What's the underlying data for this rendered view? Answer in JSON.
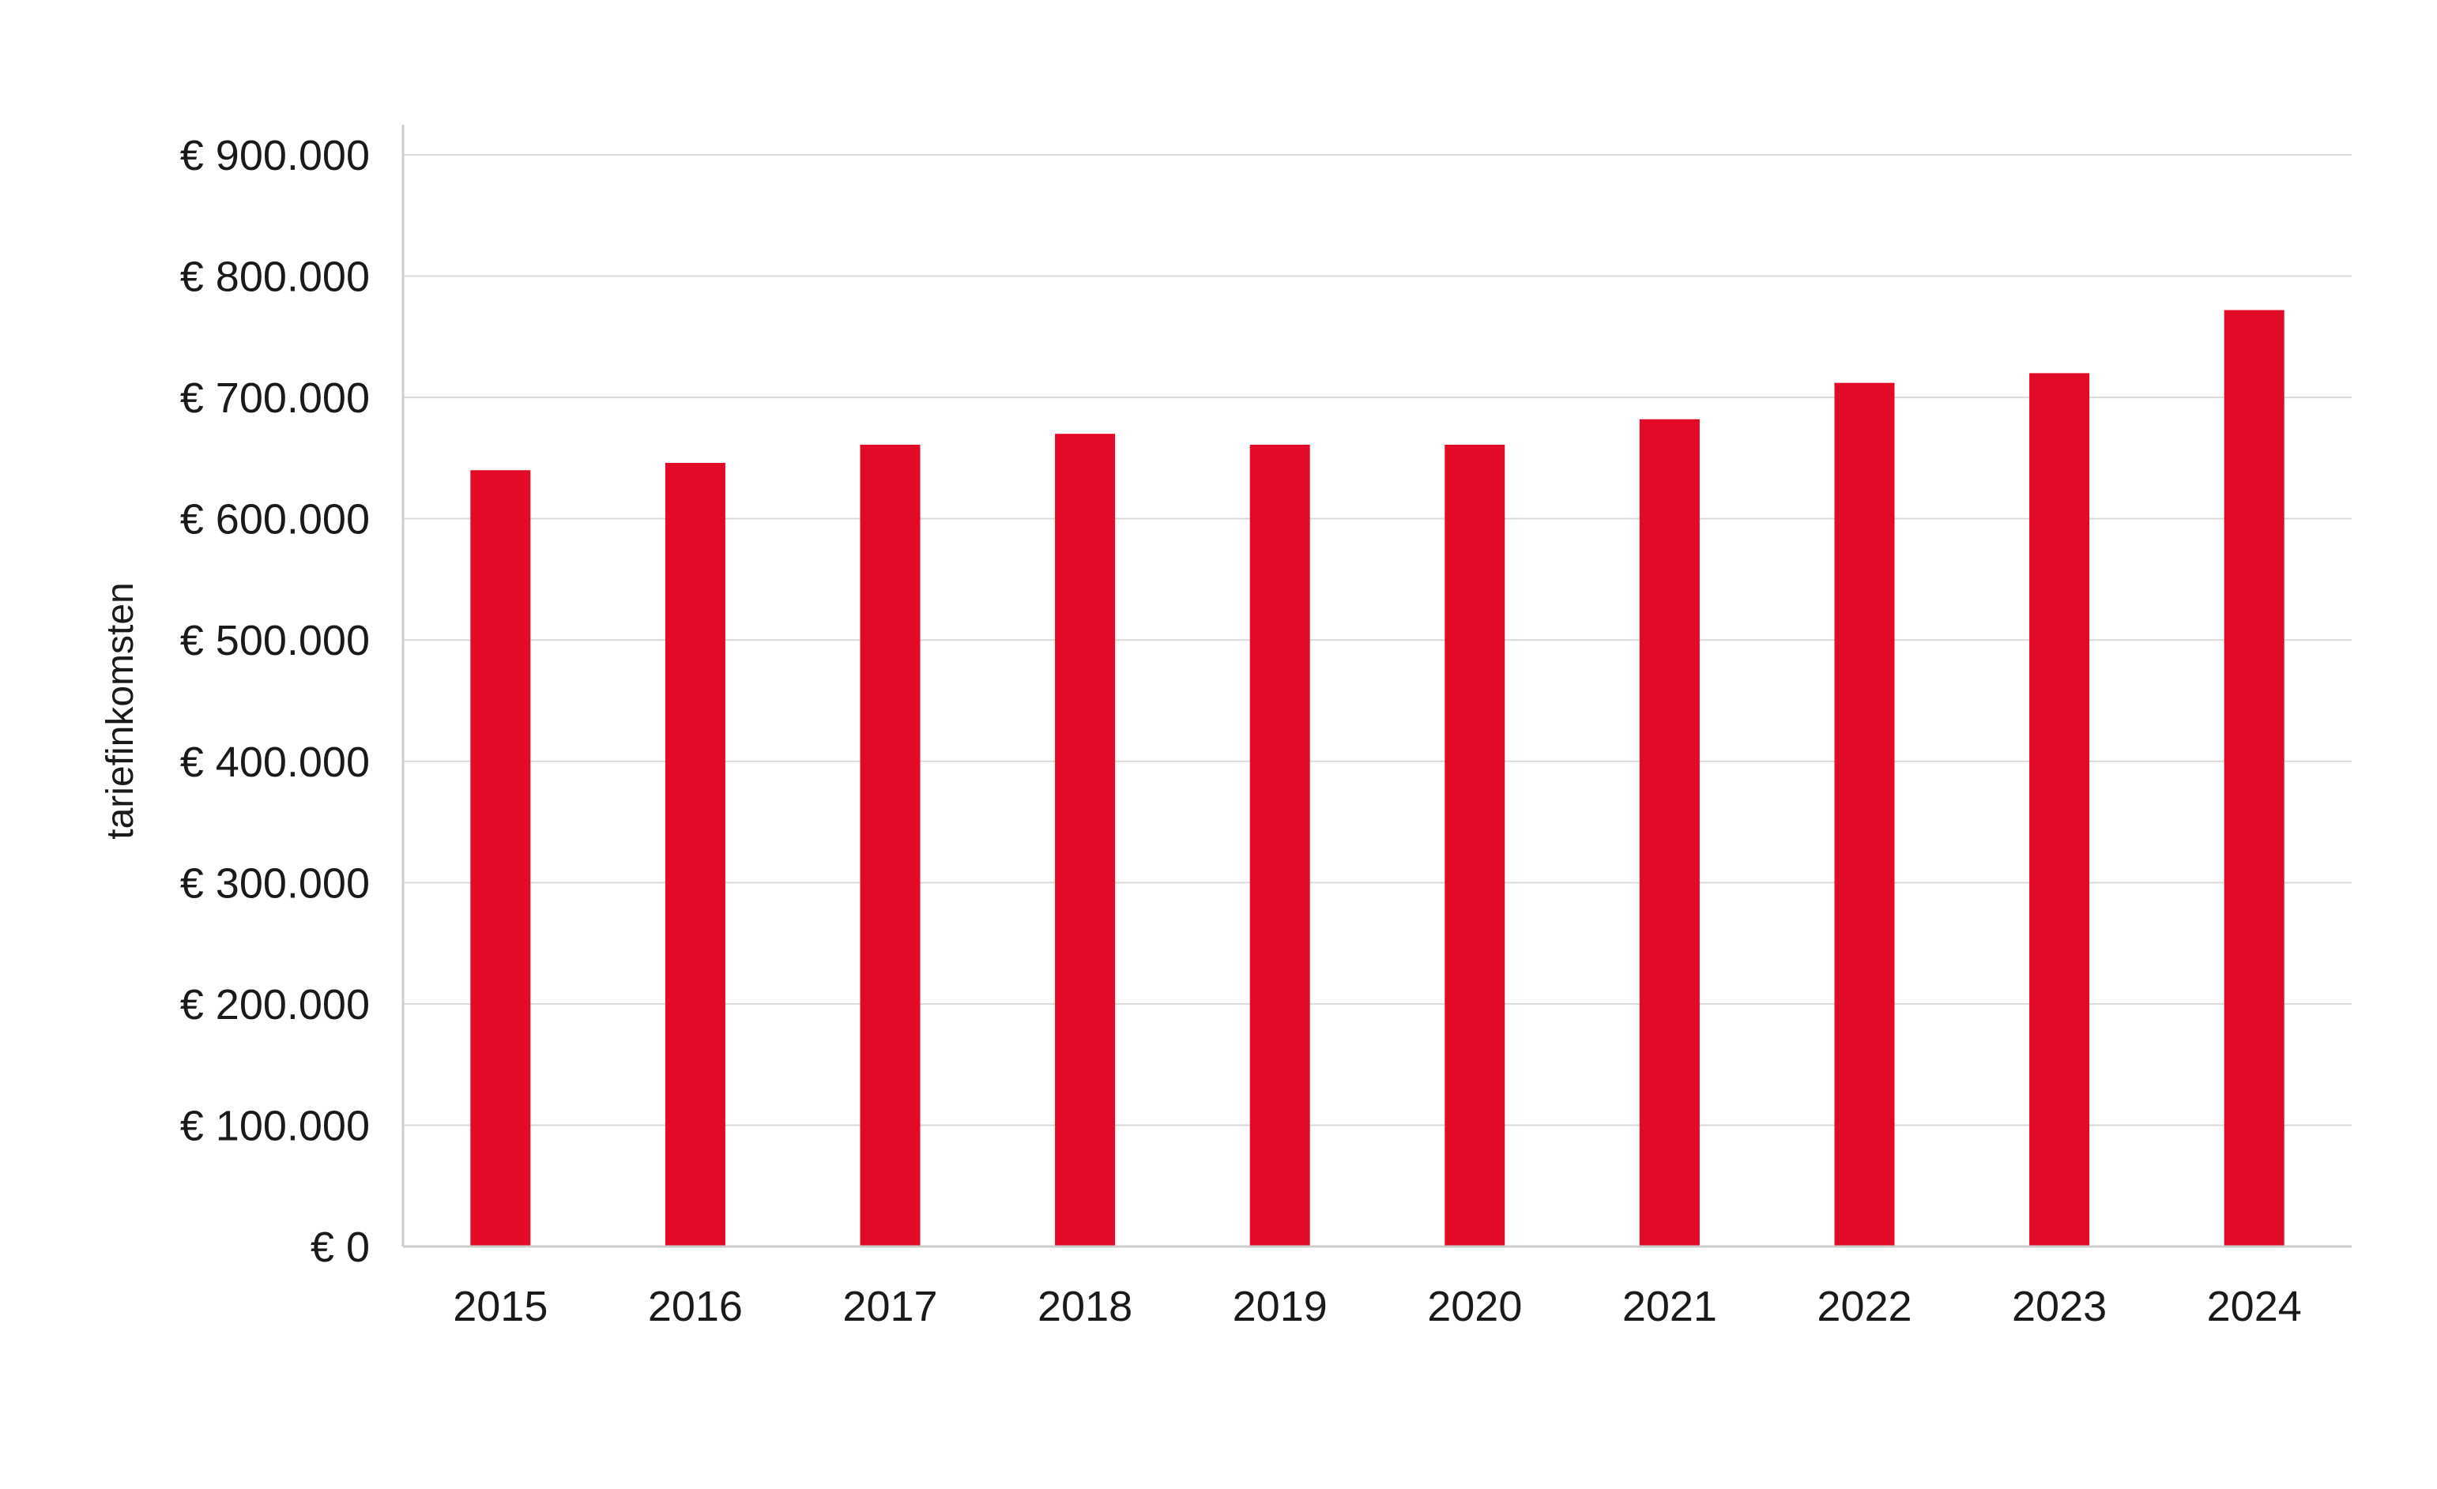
{
  "chart_data": {
    "type": "bar",
    "title": "",
    "xlabel": "",
    "ylabel": "tariefinkomsten",
    "categories": [
      "2015",
      "2016",
      "2017",
      "2018",
      "2019",
      "2020",
      "2021",
      "2022",
      "2023",
      "2024"
    ],
    "values": [
      640000,
      646000,
      661000,
      670000,
      661000,
      661000,
      682000,
      712000,
      720000,
      772000
    ],
    "ylim": [
      0,
      900000
    ],
    "yticks": [
      0,
      100000,
      200000,
      300000,
      400000,
      500000,
      600000,
      700000,
      800000,
      900000
    ],
    "ytick_labels": [
      "€ 0",
      "€ 100.000",
      "€ 200.000",
      "€ 300.000",
      "€ 400.000",
      "€ 500.000",
      "€ 600.000",
      "€ 700.000",
      "€ 800.000",
      "€ 900.000"
    ],
    "grid": true,
    "legend": "none",
    "bar_color": "#e30a27",
    "grid_color": "#d9d9d9",
    "axis_color": "#cccccc"
  }
}
